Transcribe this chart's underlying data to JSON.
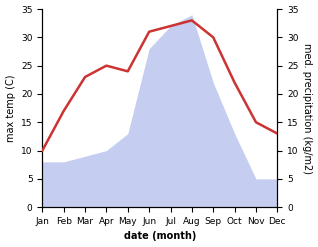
{
  "months": [
    "Jan",
    "Feb",
    "Mar",
    "Apr",
    "May",
    "Jun",
    "Jul",
    "Aug",
    "Sep",
    "Oct",
    "Nov",
    "Dec"
  ],
  "temperature": [
    10,
    17,
    23,
    25,
    24,
    31,
    32,
    33,
    30,
    22,
    15,
    13
  ],
  "precipitation": [
    8,
    8,
    9,
    10,
    13,
    28,
    32,
    34,
    22,
    13,
    5,
    5
  ],
  "temp_color": "#cc3333",
  "precip_fill_color": "#c5cef0",
  "ylim": [
    0,
    35
  ],
  "xlabel": "date (month)",
  "ylabel_left": "max temp (C)",
  "ylabel_right": "med. precipitation (kg/m2)",
  "bg_color": "#ffffff",
  "plot_bg_color": "#ffffff",
  "tick_fontsize": 6.5,
  "label_fontsize": 7
}
